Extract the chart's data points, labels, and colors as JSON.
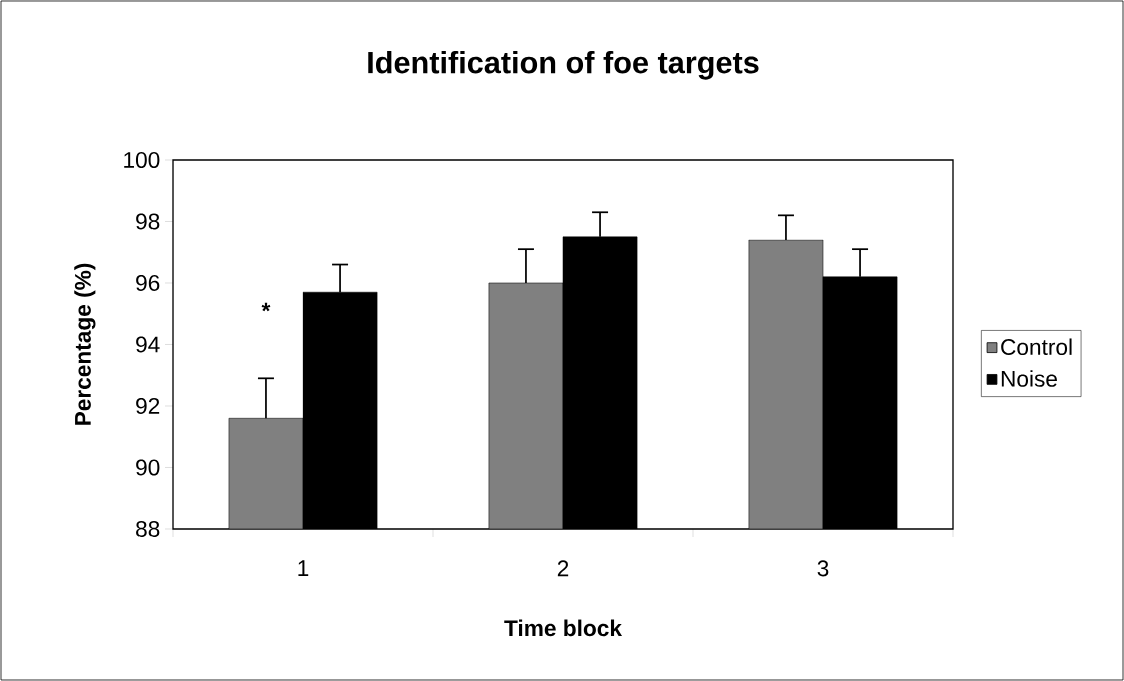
{
  "chart_data": {
    "type": "bar",
    "title": "Identification of foe targets",
    "xlabel": "Time block",
    "ylabel": "Percentage (%)",
    "categories": [
      "1",
      "2",
      "3"
    ],
    "series": [
      {
        "name": "Control",
        "color": "#808080",
        "values": [
          91.6,
          96.0,
          97.4
        ],
        "errors": [
          [
            91.6,
            92.9
          ],
          [
            96.0,
            97.1
          ],
          [
            97.4,
            98.2
          ]
        ]
      },
      {
        "name": "Noise",
        "color": "#000000",
        "values": [
          95.7,
          97.5,
          96.2
        ],
        "errors": [
          [
            95.7,
            96.6
          ],
          [
            97.5,
            98.3
          ],
          [
            96.2,
            97.1
          ]
        ]
      }
    ],
    "ylim": [
      88,
      100
    ],
    "yticks": [
      88,
      90,
      92,
      94,
      96,
      98,
      100
    ],
    "annotations": [
      {
        "text": "*",
        "x": "1",
        "y": 95.1
      }
    ],
    "legend": "right",
    "grid": false
  }
}
